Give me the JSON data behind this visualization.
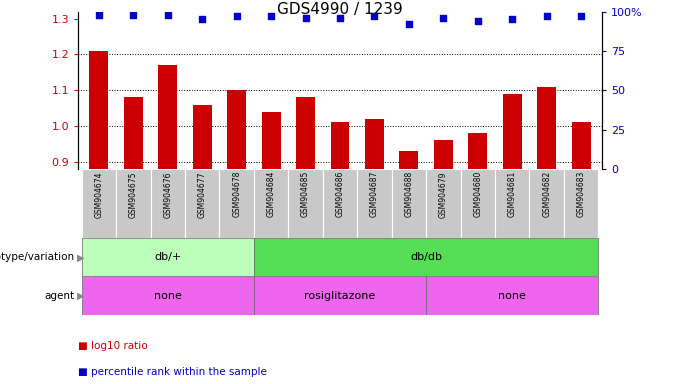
{
  "title": "GDS4990 / 1239",
  "samples": [
    "GSM904674",
    "GSM904675",
    "GSM904676",
    "GSM904677",
    "GSM904678",
    "GSM904684",
    "GSM904685",
    "GSM904686",
    "GSM904687",
    "GSM904688",
    "GSM904679",
    "GSM904680",
    "GSM904681",
    "GSM904682",
    "GSM904683"
  ],
  "log10_ratio": [
    1.21,
    1.08,
    1.17,
    1.06,
    1.1,
    1.04,
    1.08,
    1.01,
    1.02,
    0.93,
    0.96,
    0.98,
    1.09,
    1.11,
    1.01
  ],
  "percentile": [
    98,
    98,
    98,
    95,
    97,
    97,
    96,
    96,
    97,
    92,
    96,
    94,
    95,
    97,
    97
  ],
  "bar_color": "#cc0000",
  "dot_color": "#0000cc",
  "ylim_left": [
    0.88,
    1.32
  ],
  "yticks_left": [
    0.9,
    1.0,
    1.1,
    1.2,
    1.3
  ],
  "yticks_right": [
    0,
    25,
    50,
    75,
    100
  ],
  "ylabel_right_labels": [
    "0",
    "25",
    "50",
    "75",
    "100%"
  ],
  "grid_values": [
    0.9,
    1.0,
    1.1,
    1.2
  ],
  "genotype_groups": [
    {
      "label": "db/+",
      "start": 0,
      "end": 5,
      "color": "#bbffbb"
    },
    {
      "label": "db/db",
      "start": 5,
      "end": 15,
      "color": "#55dd55"
    }
  ],
  "agent_groups": [
    {
      "label": "none",
      "start": 0,
      "end": 5
    },
    {
      "label": "rosiglitazone",
      "start": 5,
      "end": 10
    },
    {
      "label": "none",
      "start": 10,
      "end": 15
    }
  ],
  "agent_color": "#ee66ee",
  "legend_items": [
    {
      "color": "#cc0000",
      "label": "log10 ratio"
    },
    {
      "color": "#0000cc",
      "label": "percentile rank within the sample"
    }
  ],
  "sample_box_color": "#c8c8c8",
  "label_fontsize": 8,
  "title_fontsize": 11,
  "arrow_color": "#888888"
}
